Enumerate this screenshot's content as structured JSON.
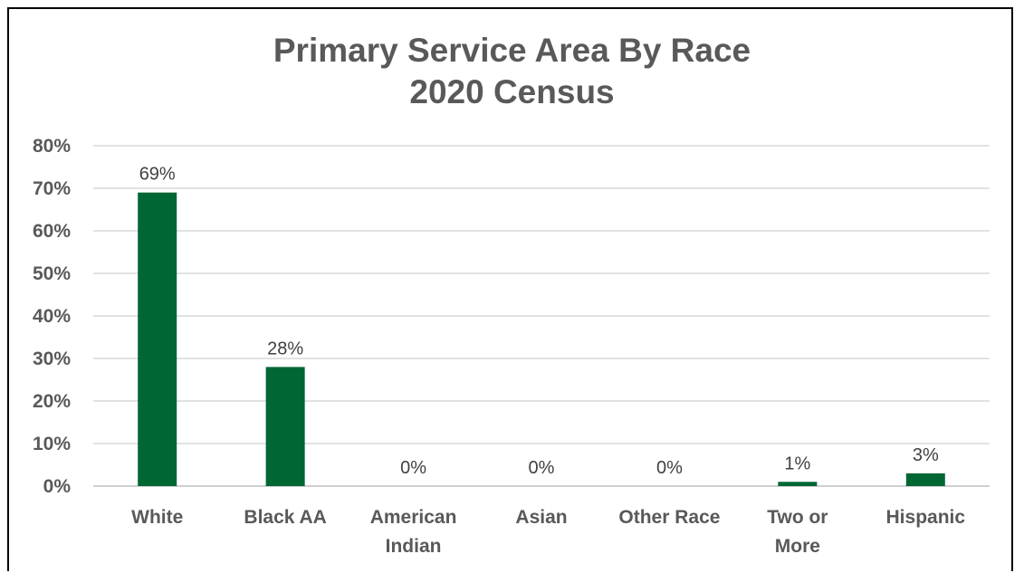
{
  "chart_data": {
    "type": "bar",
    "title": [
      "Primary Service Area By Race",
      "2020 Census"
    ],
    "categories": [
      [
        "White"
      ],
      [
        "Black AA"
      ],
      [
        "American",
        "Indian"
      ],
      [
        "Asian"
      ],
      [
        "Other Race"
      ],
      [
        "Two or",
        "More"
      ],
      [
        "Hispanic"
      ]
    ],
    "values": [
      0.69,
      0.28,
      0.0,
      0.0,
      0.0,
      0.01,
      0.03
    ],
    "data_labels": [
      "69%",
      "28%",
      "0%",
      "0%",
      "0%",
      "1%",
      "3%"
    ],
    "yticks": [
      "0%",
      "10%",
      "20%",
      "30%",
      "40%",
      "50%",
      "60%",
      "70%",
      "80%"
    ],
    "ylim": [
      0,
      0.8
    ],
    "grid": true,
    "legend": "none",
    "bar_color": "#006633",
    "grid_color": "#d9d9d9"
  }
}
